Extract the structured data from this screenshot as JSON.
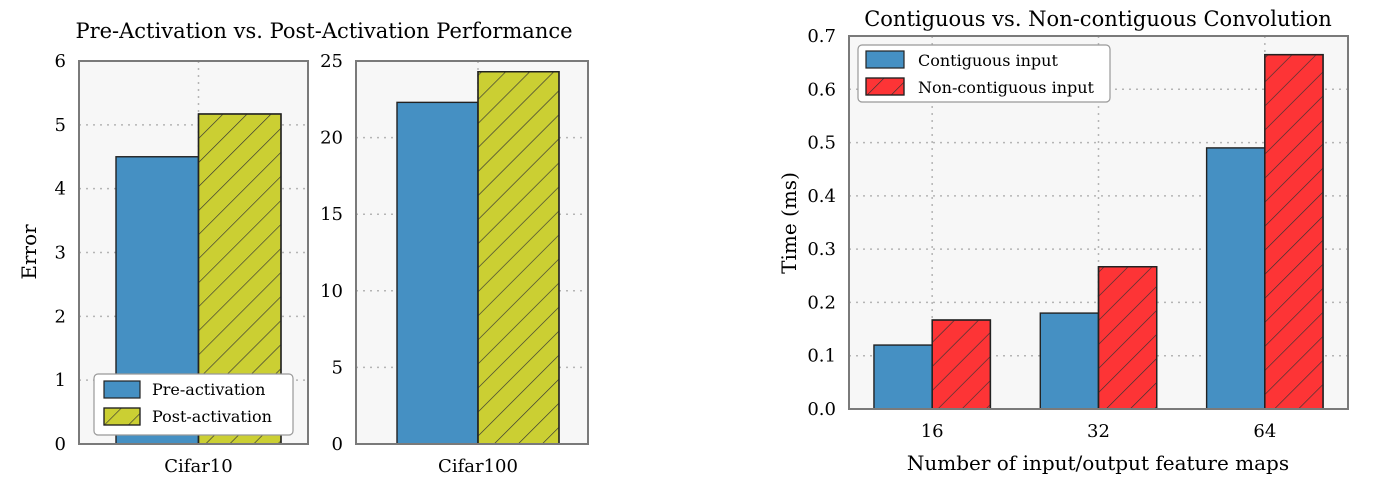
{
  "left_figure": {
    "title": "Pre-Activation vs. Post-Activation Performance",
    "ylabel": "Error",
    "legend": {
      "placement": "lower-left",
      "entries": [
        "Pre-activation",
        "Post-activation"
      ]
    }
  },
  "right_figure": {
    "title": "Contiguous vs. Non-contiguous Convolution"
  },
  "colors": {
    "blue": "#4590c3",
    "olive": "#cbcf33",
    "red": "#fd3436",
    "panel_bg": "#f7f7f7",
    "grid": "#b5b5b5",
    "frame": "#7a7a7a"
  },
  "chart_data": [
    {
      "type": "bar",
      "title": "Pre-Activation vs. Post-Activation Performance",
      "xlabel": "",
      "ylabel": "Error",
      "categories": [
        "Cifar10"
      ],
      "series": [
        {
          "name": "Pre-activation",
          "values": [
            4.5
          ]
        },
        {
          "name": "Post-activation",
          "values": [
            5.17
          ]
        }
      ],
      "ylim": [
        0,
        6
      ],
      "yticks": [
        "0",
        "1",
        "2",
        "3",
        "4",
        "5",
        "6"
      ],
      "grid": true
    },
    {
      "type": "bar",
      "title": "",
      "xlabel": "",
      "ylabel": "",
      "categories": [
        "Cifar100"
      ],
      "series": [
        {
          "name": "Pre-activation",
          "values": [
            22.3
          ]
        },
        {
          "name": "Post-activation",
          "values": [
            24.3
          ]
        }
      ],
      "ylim": [
        0,
        25
      ],
      "yticks": [
        "0",
        "5",
        "10",
        "15",
        "20",
        "25"
      ],
      "grid": true
    },
    {
      "type": "bar",
      "title": "Contiguous vs. Non-contiguous Convolution",
      "xlabel": "Number of input/output feature maps",
      "ylabel": "Time (ms)",
      "categories": [
        "16",
        "32",
        "64"
      ],
      "series": [
        {
          "name": "Contiguous input",
          "values": [
            0.12,
            0.18,
            0.49
          ]
        },
        {
          "name": "Non-contiguous input",
          "values": [
            0.167,
            0.267,
            0.665
          ]
        }
      ],
      "ylim": [
        0,
        0.7
      ],
      "yticks": [
        "0.0",
        "0.1",
        "0.2",
        "0.3",
        "0.4",
        "0.5",
        "0.6",
        "0.7"
      ],
      "legend_placement": "upper-left",
      "grid": true
    }
  ]
}
